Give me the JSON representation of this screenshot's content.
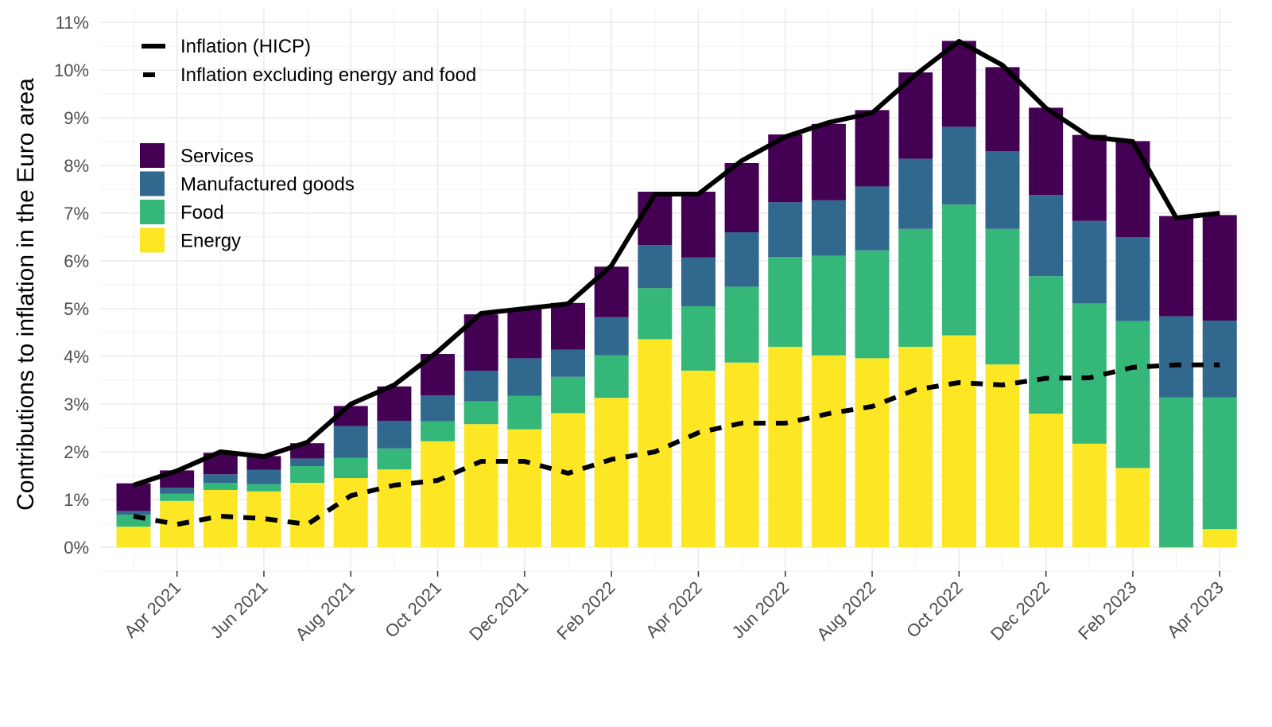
{
  "chart_data": {
    "type": "bar",
    "stacked": true,
    "title": "",
    "xlabel": "",
    "ylabel": "Contributions to inflation in the Euro area",
    "ylim": [
      0,
      11
    ],
    "y_ticks": [
      "0%",
      "1%",
      "2%",
      "3%",
      "4%",
      "5%",
      "6%",
      "7%",
      "8%",
      "9%",
      "10%",
      "11%"
    ],
    "grid": true,
    "legend_position": "top-left",
    "x_tick_labels": [
      {
        "label": "Apr 2021",
        "at": "2021-04-01"
      },
      {
        "label": "Jun 2021",
        "at": "2021-06-01"
      },
      {
        "label": "Aug 2021",
        "at": "2021-08-01"
      },
      {
        "label": "Oct 2021",
        "at": "2021-10-01"
      },
      {
        "label": "Dec 2021",
        "at": "2021-12-01"
      },
      {
        "label": "Feb 2022",
        "at": "2022-02-01"
      },
      {
        "label": "Apr 2022",
        "at": "2022-04-01"
      },
      {
        "label": "Jun 2022",
        "at": "2022-06-01"
      },
      {
        "label": "Aug 2022",
        "at": "2022-08-01"
      },
      {
        "label": "Oct 2022",
        "at": "2022-10-01"
      },
      {
        "label": "Dec 2022",
        "at": "2022-12-01"
      },
      {
        "label": "Feb 2023",
        "at": "2023-02-01"
      },
      {
        "label": "Apr 2023",
        "at": "2023-04-01"
      }
    ],
    "x": [
      "2021-03",
      "2021-04",
      "2021-05",
      "2021-06",
      "2021-07",
      "2021-08",
      "2021-09",
      "2021-10",
      "2021-11",
      "2021-12",
      "2022-01",
      "2022-02",
      "2022-03",
      "2022-04",
      "2022-05",
      "2022-06",
      "2022-07",
      "2022-08",
      "2022-09",
      "2022-10",
      "2022-11",
      "2022-12",
      "2023-01",
      "2023-02",
      "2023-03",
      "2023-04"
    ],
    "series": [
      {
        "name": "Energy",
        "kind": "bar",
        "color": "#fde725",
        "values": [
          0.43,
          0.97,
          1.2,
          1.17,
          1.35,
          1.45,
          1.63,
          2.22,
          2.58,
          2.47,
          2.81,
          3.13,
          4.36,
          3.7,
          3.87,
          4.2,
          4.02,
          3.96,
          4.2,
          4.44,
          3.83,
          2.8,
          2.17,
          1.66,
          -0.02,
          0.38
        ]
      },
      {
        "name": "Food",
        "kind": "bar",
        "color": "#35b779",
        "values": [
          0.25,
          0.15,
          0.15,
          0.15,
          0.35,
          0.42,
          0.44,
          0.42,
          0.48,
          0.7,
          0.76,
          0.89,
          1.07,
          1.35,
          1.59,
          1.88,
          2.09,
          2.26,
          2.47,
          2.74,
          2.84,
          2.88,
          2.94,
          3.08,
          3.14,
          2.76
        ]
      },
      {
        "name": "Manufactured goods",
        "kind": "bar",
        "color": "#31688e",
        "values": [
          0.08,
          0.13,
          0.18,
          0.3,
          0.16,
          0.67,
          0.58,
          0.54,
          0.64,
          0.79,
          0.57,
          0.8,
          0.9,
          1.02,
          1.14,
          1.15,
          1.16,
          1.34,
          1.47,
          1.63,
          1.63,
          1.7,
          1.73,
          1.76,
          1.7,
          1.61
        ]
      },
      {
        "name": "Services",
        "kind": "bar",
        "color": "#440154",
        "values": [
          0.58,
          0.36,
          0.45,
          0.29,
          0.32,
          0.42,
          0.72,
          0.87,
          1.18,
          1.05,
          0.98,
          1.06,
          1.12,
          1.38,
          1.45,
          1.42,
          1.6,
          1.6,
          1.81,
          1.8,
          1.76,
          1.83,
          1.8,
          2.01,
          2.1,
          2.21
        ]
      },
      {
        "name": "Inflation (HICP)",
        "kind": "line",
        "style": "solid",
        "color": "#000000",
        "values": [
          1.3,
          1.6,
          2.0,
          1.9,
          2.2,
          3.0,
          3.4,
          4.1,
          4.9,
          5.0,
          5.1,
          5.9,
          7.4,
          7.4,
          8.1,
          8.6,
          8.9,
          9.1,
          9.9,
          10.6,
          10.1,
          9.2,
          8.6,
          8.5,
          6.9,
          7.0
        ]
      },
      {
        "name": "Inflation excluding energy and food",
        "kind": "line",
        "style": "dashed",
        "color": "#000000",
        "values": [
          0.65,
          0.48,
          0.65,
          0.6,
          0.48,
          1.08,
          1.3,
          1.4,
          1.8,
          1.8,
          1.55,
          1.84,
          2.0,
          2.4,
          2.6,
          2.6,
          2.8,
          2.95,
          3.3,
          3.45,
          3.4,
          3.54,
          3.55,
          3.77,
          3.82,
          3.82
        ]
      }
    ]
  },
  "legend": {
    "lines": [
      {
        "label": "Inflation (HICP)",
        "style": "solid"
      },
      {
        "label": "Inflation excluding energy and food",
        "style": "dashed"
      }
    ],
    "fills": [
      {
        "label": "Services",
        "color": "#440154"
      },
      {
        "label": "Manufactured goods",
        "color": "#31688e"
      },
      {
        "label": "Food",
        "color": "#35b779"
      },
      {
        "label": "Energy",
        "color": "#fde725"
      }
    ]
  }
}
